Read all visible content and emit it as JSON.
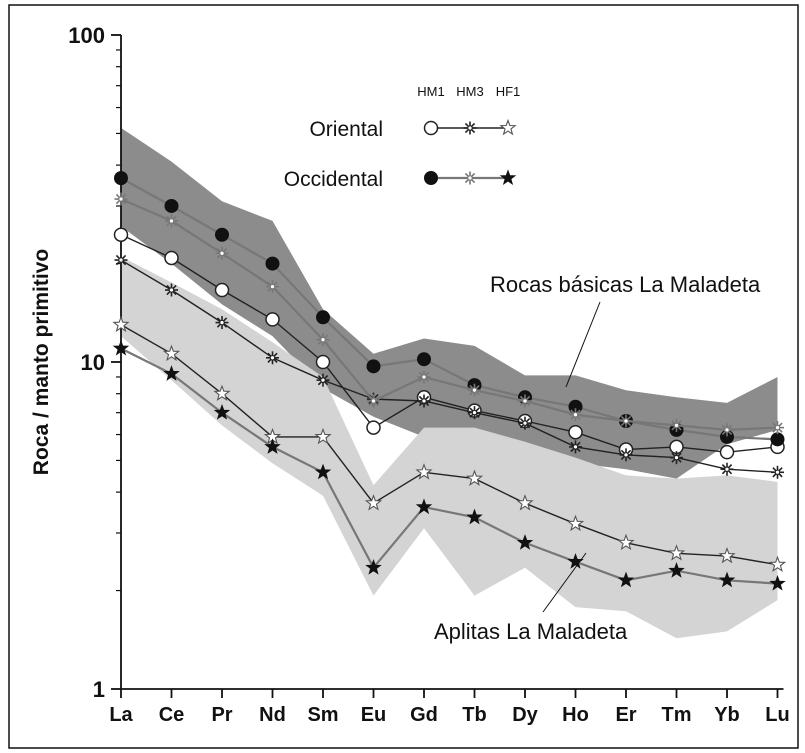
{
  "chart_data": {
    "type": "line",
    "yscale": "log",
    "ylabel": "Roca / manto primitivo",
    "xlabel": "",
    "ylim": [
      1,
      100
    ],
    "yticks": [
      1,
      10,
      100
    ],
    "categories": [
      "La",
      "Ce",
      "Pr",
      "Nd",
      "Sm",
      "Eu",
      "Gd",
      "Tb",
      "Dy",
      "Ho",
      "Er",
      "Tm",
      "Yb",
      "Lu"
    ],
    "legend": {
      "sample_labels": [
        "HM1",
        "HM3",
        "HF1"
      ],
      "groups": [
        {
          "label": "Oriental",
          "color": "#222222",
          "markers": [
            "circle-open",
            "asterisk",
            "star-open"
          ]
        },
        {
          "label": "Occidental",
          "color": "#777777",
          "markers": [
            "circle-filled",
            "asterisk",
            "star-filled"
          ]
        }
      ]
    },
    "bands": [
      {
        "name": "Rocas básicas La Maladeta",
        "color": "#8c8c8c",
        "upper": [
          52,
          41,
          31,
          27,
          14.5,
          10.6,
          11.8,
          11.2,
          9.1,
          9.1,
          8.2,
          7.8,
          7.5,
          9
        ],
        "lower": [
          26,
          20,
          15,
          12,
          8.3,
          6.8,
          5.9,
          6.1,
          5.3,
          4.9,
          4.7,
          4.4,
          5.6,
          6.2
        ]
      },
      {
        "name": "Aplitas La Maladeta",
        "color": "#d4d4d4",
        "upper": [
          21,
          17.5,
          14.5,
          11.5,
          9,
          4.2,
          6.3,
          6.3,
          5.7,
          5.1,
          4.5,
          4.4,
          4.5,
          4.3
        ],
        "lower": [
          12,
          8.8,
          6.4,
          4.9,
          3.9,
          1.93,
          3.1,
          1.93,
          2.35,
          1.78,
          1.73,
          1.43,
          1.5,
          1.87
        ]
      }
    ],
    "series": [
      {
        "name": "HM1",
        "group": "Oriental",
        "marker": "circle-open",
        "color": "#222222",
        "values": [
          24.5,
          20.8,
          16.6,
          13.5,
          10,
          6.3,
          7.8,
          7.1,
          6.6,
          6.1,
          5.4,
          5.5,
          5.3,
          5.5
        ]
      },
      {
        "name": "HM3",
        "group": "Oriental",
        "marker": "asterisk",
        "color": "#222222",
        "values": [
          20.5,
          16.6,
          13.2,
          10.3,
          8.8,
          7.7,
          7.6,
          7,
          6.5,
          5.5,
          5.2,
          5.1,
          4.7,
          4.6
        ]
      },
      {
        "name": "HF1",
        "group": "Oriental",
        "marker": "star-open",
        "color": "#222222",
        "values": [
          13,
          10.6,
          8,
          5.9,
          5.9,
          3.7,
          4.6,
          4.4,
          3.7,
          3.2,
          2.8,
          2.6,
          2.55,
          2.4
        ]
      },
      {
        "name": "HM1",
        "group": "Occidental",
        "marker": "circle-filled",
        "color": "#777777",
        "values": [
          36.5,
          30,
          24.5,
          20,
          13.7,
          9.7,
          10.2,
          8.5,
          7.8,
          7.3,
          6.6,
          6.2,
          5.9,
          5.8
        ]
      },
      {
        "name": "HM3",
        "group": "Occidental",
        "marker": "asterisk",
        "color": "#777777",
        "values": [
          31.5,
          27,
          21.5,
          17,
          11.7,
          7.6,
          9,
          8.2,
          7.6,
          6.9,
          6.6,
          6.4,
          6.2,
          6.3
        ]
      },
      {
        "name": "HF1",
        "group": "Occidental",
        "marker": "star-filled",
        "color": "#777777",
        "values": [
          11,
          9.2,
          7,
          5.5,
          4.6,
          2.35,
          3.6,
          3.35,
          2.8,
          2.45,
          2.15,
          2.3,
          2.15,
          2.1
        ]
      }
    ]
  }
}
